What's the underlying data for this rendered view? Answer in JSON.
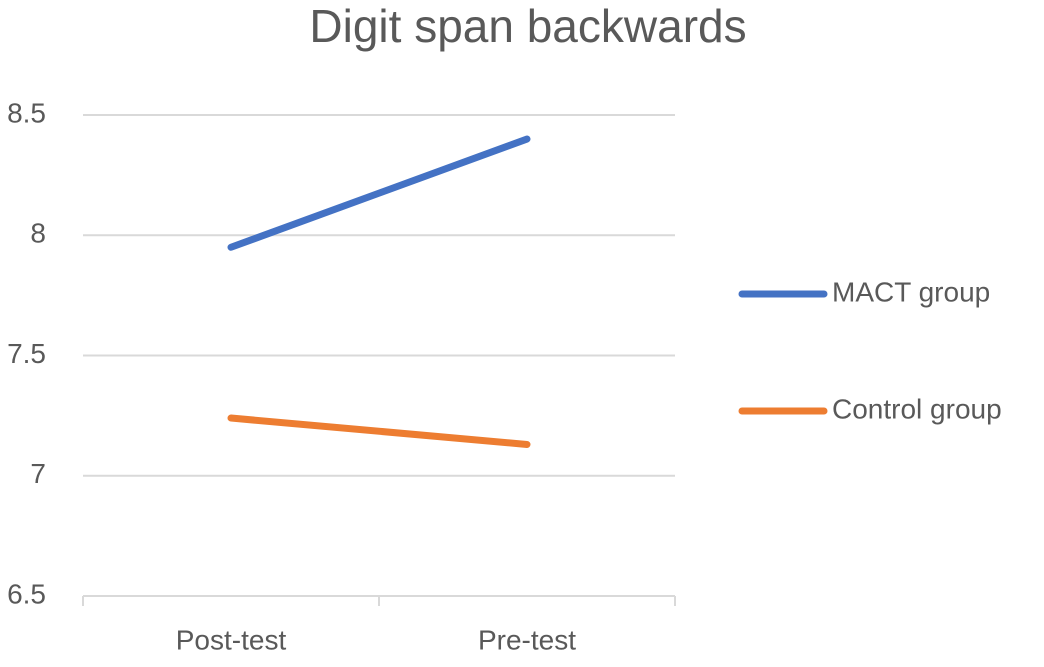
{
  "chart_data": {
    "type": "line",
    "title": "Digit span backwards",
    "categories": [
      "Post-test",
      "Pre-test"
    ],
    "series": [
      {
        "name": "MACT group",
        "color": "#4472c4",
        "values": [
          7.95,
          8.4
        ]
      },
      {
        "name": "Control group",
        "color": "#ed7d31",
        "values": [
          7.24,
          7.13
        ]
      }
    ],
    "ylim": [
      6.5,
      8.5
    ],
    "yticks": [
      6.5,
      7,
      7.5,
      8,
      8.5
    ],
    "grid": true,
    "legend": "right"
  }
}
